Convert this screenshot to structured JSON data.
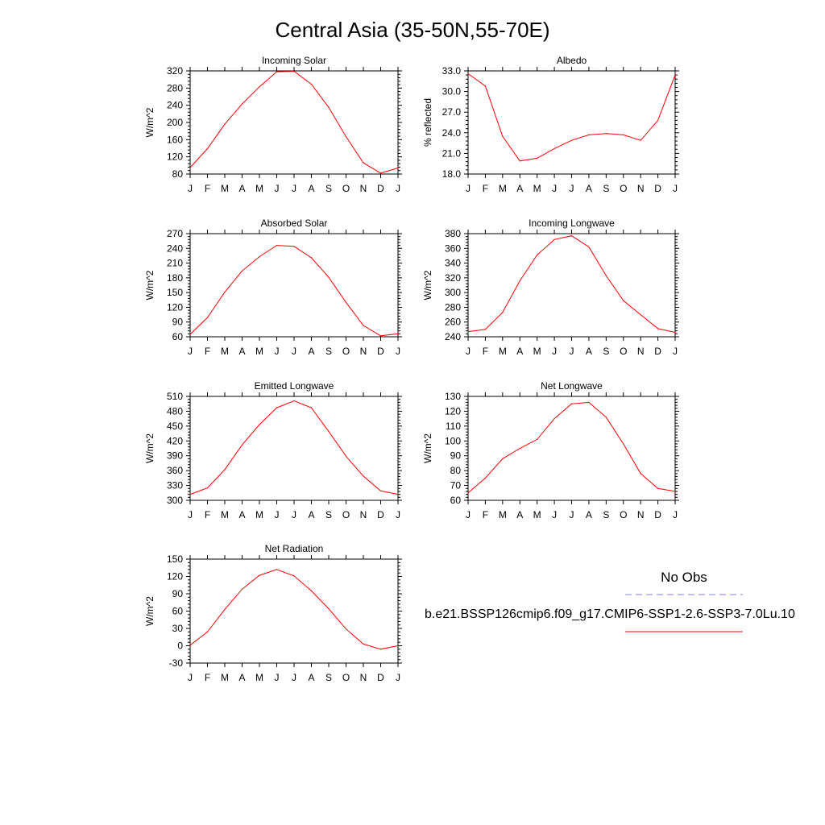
{
  "title": "Central Asia (35-50N,55-70E)",
  "month_labels": [
    "J",
    "F",
    "M",
    "A",
    "M",
    "J",
    "J",
    "A",
    "S",
    "O",
    "N",
    "D",
    "J"
  ],
  "colors": {
    "model": "#ff0000",
    "obs": "#8080ff",
    "axis": "#000000"
  },
  "legend": {
    "obs_label": "No Obs",
    "model_label": "b.e21.BSSP126cmip6.f09_g17.CMIP6-SSP1-2.6-SSP3-7.0Lu.10"
  },
  "chart_data": [
    {
      "type": "line",
      "title": "Incoming Solar",
      "ylabel": "W/m^2",
      "ylim": [
        80,
        320
      ],
      "yticks": [
        80,
        120,
        160,
        200,
        240,
        280,
        320
      ],
      "ytick_fmt": 0,
      "series": [
        {
          "values": [
            95,
            139,
            196,
            243,
            283,
            318,
            319,
            289,
            235,
            167,
            106,
            82,
            94
          ]
        }
      ]
    },
    {
      "type": "line",
      "title": "Albedo",
      "ylabel": "% reflected",
      "ylim": [
        18,
        33
      ],
      "yticks": [
        18,
        21,
        24,
        27,
        30,
        33
      ],
      "ytick_fmt": 1,
      "series": [
        {
          "values": [
            32.6,
            30.8,
            23.5,
            19.9,
            20.3,
            21.7,
            22.9,
            23.7,
            23.9,
            23.7,
            22.9,
            25.8,
            32.4
          ]
        }
      ]
    },
    {
      "type": "line",
      "title": "Absorbed Solar",
      "ylabel": "W/m^2",
      "ylim": [
        60,
        270
      ],
      "yticks": [
        60,
        90,
        120,
        150,
        180,
        210,
        240,
        270
      ],
      "ytick_fmt": 0,
      "series": [
        {
          "values": [
            65,
            99,
            151,
            194,
            223,
            246,
            244,
            221,
            181,
            130,
            83,
            62,
            66
          ]
        }
      ]
    },
    {
      "type": "line",
      "title": "Incoming Longwave",
      "ylabel": "W/m^2",
      "ylim": [
        240,
        380
      ],
      "yticks": [
        240,
        260,
        280,
        300,
        320,
        340,
        360,
        380
      ],
      "ytick_fmt": 0,
      "series": [
        {
          "values": [
            247,
            250,
            273,
            316,
            351,
            372,
            377,
            362,
            323,
            289,
            270,
            251,
            246
          ]
        }
      ]
    },
    {
      "type": "line",
      "title": "Emitted Longwave",
      "ylabel": "W/m^2",
      "ylim": [
        300,
        510
      ],
      "yticks": [
        300,
        330,
        360,
        390,
        420,
        450,
        480,
        510
      ],
      "ytick_fmt": 0,
      "series": [
        {
          "values": [
            312,
            325,
            362,
            412,
            453,
            487,
            501,
            487,
            439,
            389,
            349,
            319,
            312
          ]
        }
      ]
    },
    {
      "type": "line",
      "title": "Net Longwave",
      "ylabel": "W/m^2",
      "ylim": [
        60,
        130
      ],
      "yticks": [
        60,
        70,
        80,
        90,
        100,
        110,
        120,
        130
      ],
      "ytick_fmt": 0,
      "series": [
        {
          "values": [
            65,
            75,
            88,
            95,
            101,
            115,
            125,
            126,
            116,
            98,
            78,
            68,
            66
          ]
        }
      ]
    },
    {
      "type": "line",
      "title": "Net Radiation",
      "ylabel": "W/m^2",
      "ylim": [
        -30,
        150
      ],
      "yticks": [
        -30,
        0,
        30,
        60,
        90,
        120,
        150
      ],
      "ytick_fmt": 0,
      "series": [
        {
          "values": [
            1,
            24,
            63,
            98,
            122,
            132,
            121,
            95,
            64,
            29,
            3,
            -6,
            0
          ]
        }
      ]
    }
  ]
}
